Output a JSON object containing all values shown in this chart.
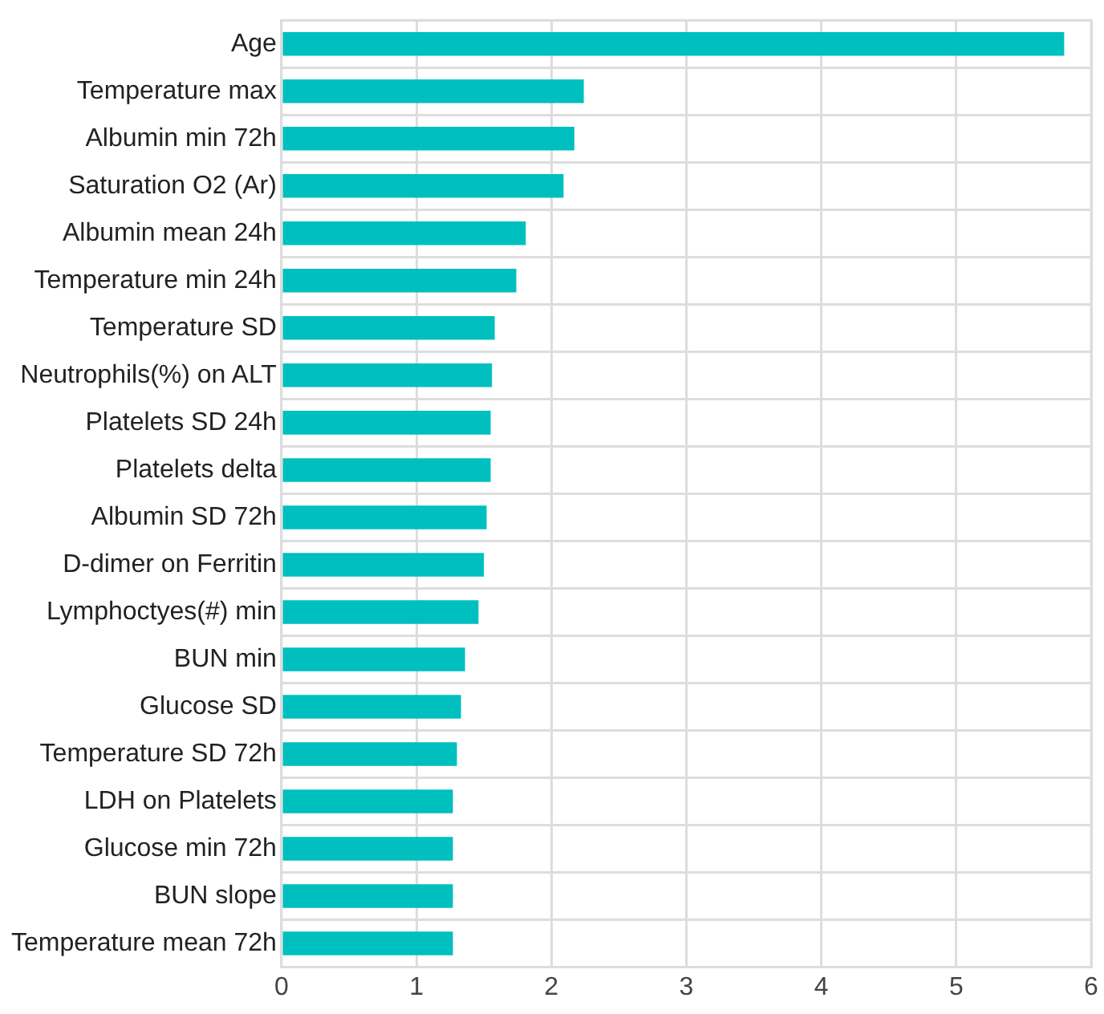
{
  "chart_data": {
    "type": "bar",
    "orientation": "horizontal",
    "categories": [
      "Age",
      "Temperature max",
      "Albumin min 72h",
      "Saturation O2 (Ar)",
      "Albumin mean 24h",
      "Temperature min 24h",
      "Temperature SD",
      "Neutrophils(%) on ALT",
      "Platelets SD 24h",
      "Platelets delta",
      "Albumin SD 72h",
      "D-dimer on Ferritin",
      "Lymphoctyes(#) min",
      "BUN min",
      "Glucose SD",
      "Temperature SD 72h",
      "LDH on Platelets",
      "Glucose min 72h",
      "BUN slope",
      "Temperature mean 72h"
    ],
    "values": [
      5.8,
      2.24,
      2.17,
      2.09,
      1.81,
      1.74,
      1.58,
      1.56,
      1.55,
      1.55,
      1.52,
      1.5,
      1.46,
      1.36,
      1.33,
      1.3,
      1.27,
      1.27,
      1.27,
      1.27
    ],
    "color": "#00bfbf",
    "xlim": [
      0,
      6
    ],
    "xticks": [
      0,
      1,
      2,
      3,
      4,
      5,
      6
    ],
    "grid": true,
    "legend": false
  }
}
